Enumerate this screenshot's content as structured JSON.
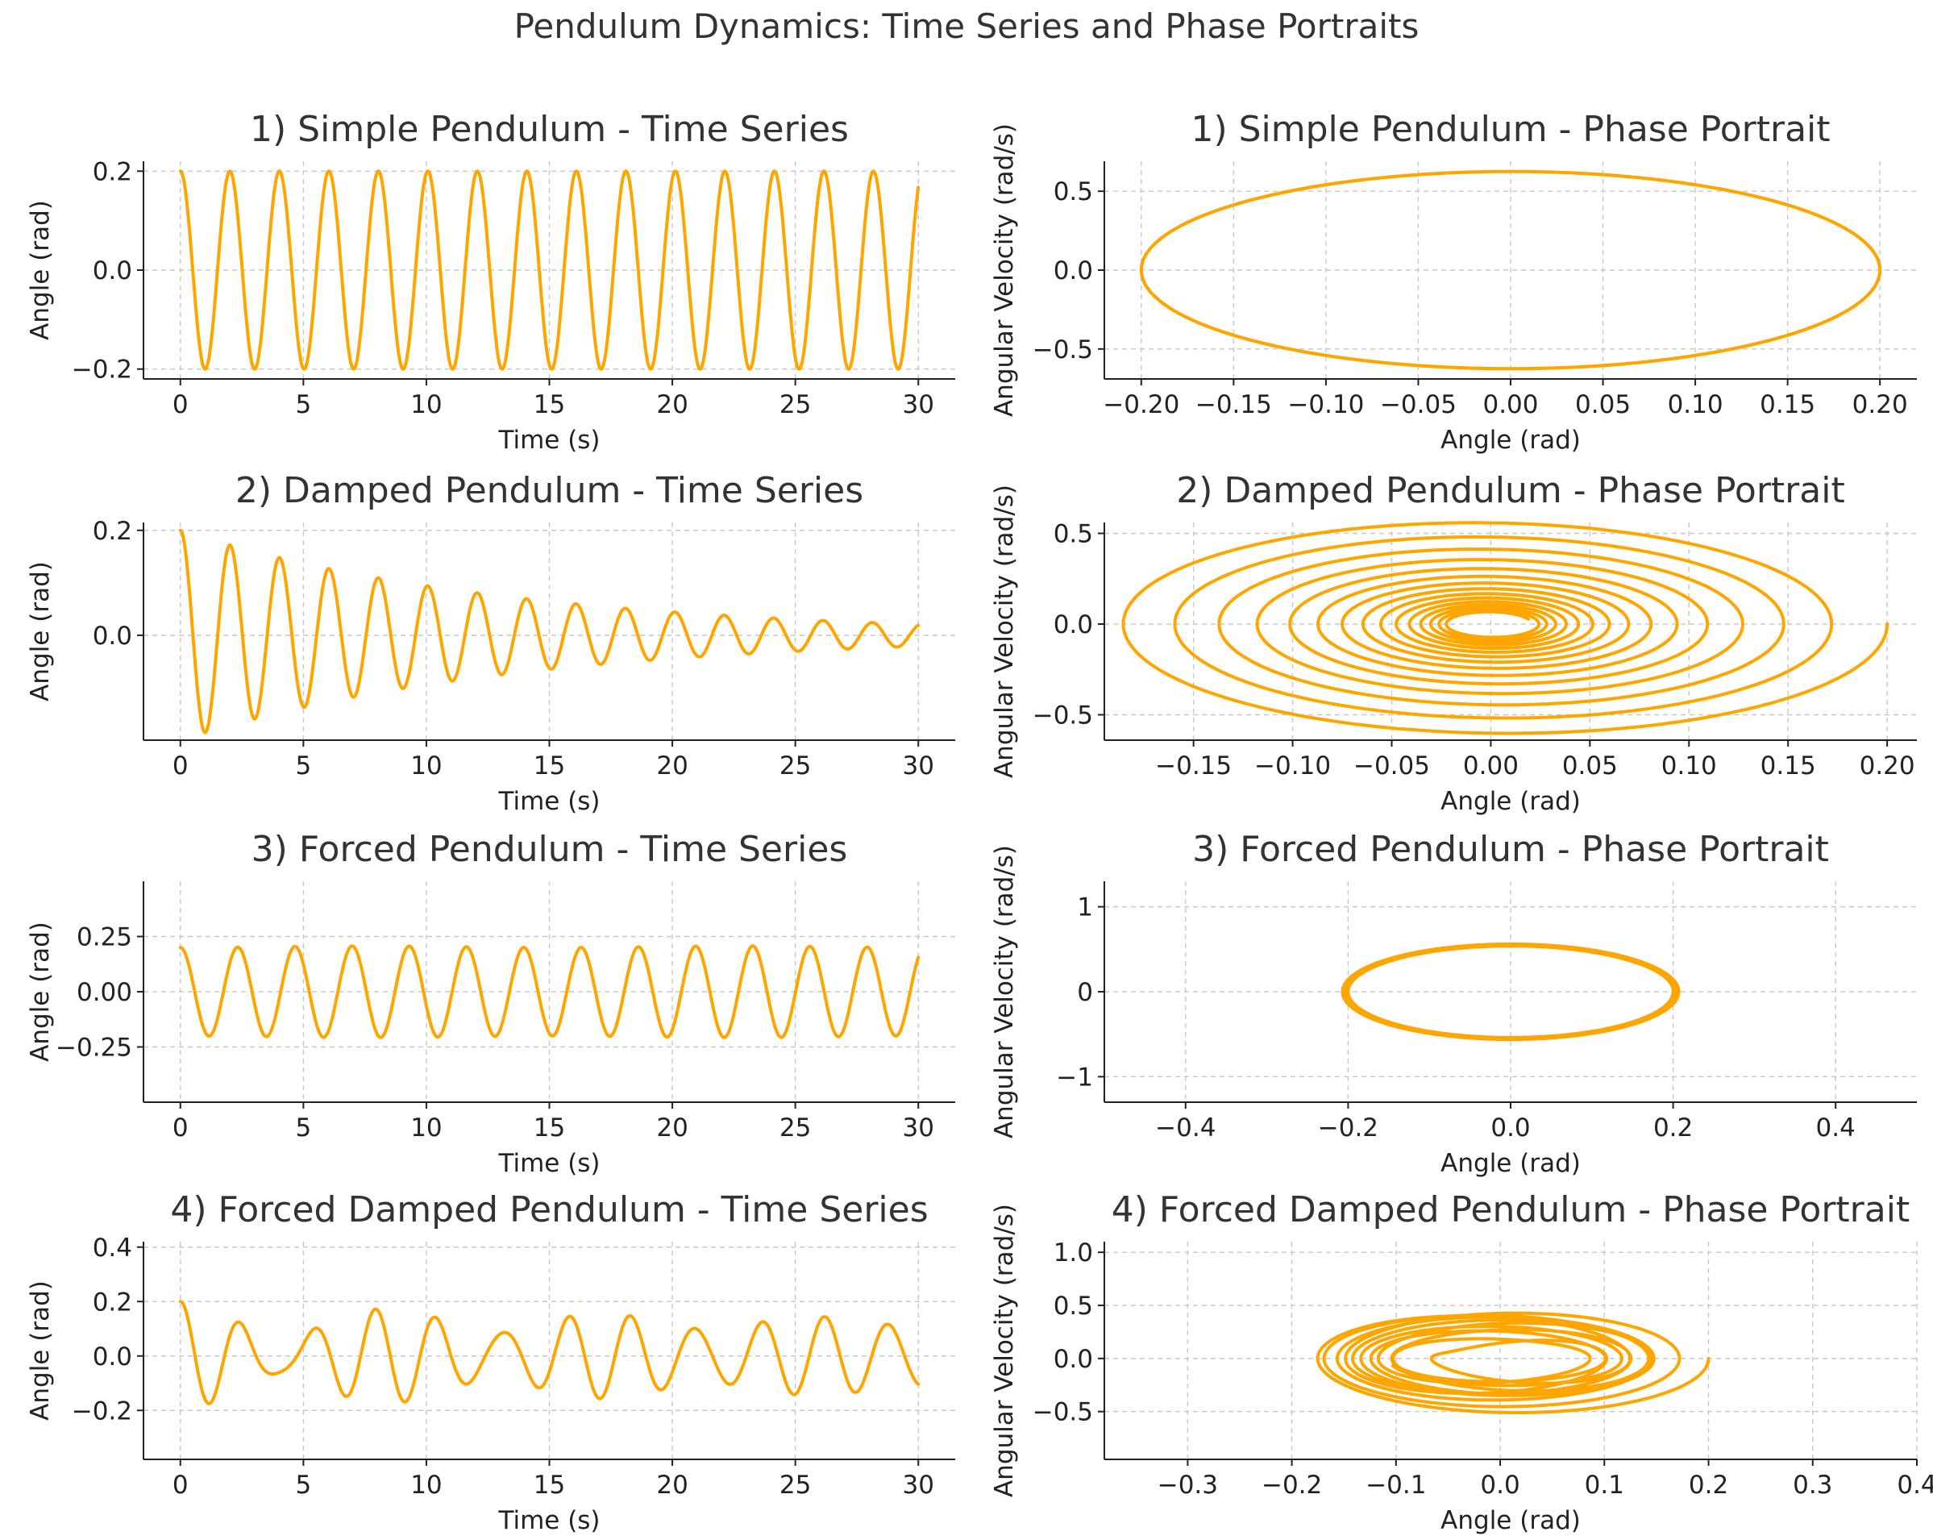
{
  "figure": {
    "suptitle": "Pendulum Dynamics: Time Series and Phase Portraits",
    "line_color": "#FFA500",
    "grid_color": "#c8c8c8"
  },
  "chart_data": [
    {
      "id": "simple-ts",
      "type": "line",
      "title": "1) Simple Pendulum - Time Series",
      "xlabel": "Time (s)",
      "ylabel": "Angle (rad)",
      "xlim": [
        -1.5,
        31.5
      ],
      "ylim": [
        -0.22,
        0.22
      ],
      "xticks": [
        0,
        5,
        10,
        15,
        20,
        25,
        30
      ],
      "xtick_labels": [
        "0",
        "5",
        "10",
        "15",
        "20",
        "25",
        "30"
      ],
      "yticks": [
        -0.2,
        0.0,
        0.2
      ],
      "ytick_labels": [
        "−0.2",
        "0.0",
        "0.2"
      ],
      "grid": true,
      "series": [
        {
          "model": {
            "kind": "time",
            "a0": 0.2,
            "omega": 3.13,
            "gamma": 0,
            "forcing": 0
          },
          "t_range": [
            0,
            30
          ]
        }
      ]
    },
    {
      "id": "simple-phase",
      "type": "line",
      "title": "1) Simple Pendulum - Phase Portrait",
      "xlabel": "Angle (rad)",
      "ylabel": "Angular Velocity (rad/s)",
      "xlim": [
        -0.22,
        0.22
      ],
      "ylim": [
        -0.69,
        0.69
      ],
      "xticks": [
        -0.2,
        -0.15,
        -0.1,
        -0.05,
        0.0,
        0.05,
        0.1,
        0.15,
        0.2
      ],
      "xtick_labels": [
        "−0.20",
        "−0.15",
        "−0.10",
        "−0.05",
        "0.00",
        "0.05",
        "0.10",
        "0.15",
        "0.20"
      ],
      "yticks": [
        -0.5,
        0.0,
        0.5
      ],
      "ytick_labels": [
        "−0.5",
        "0.0",
        "0.5"
      ],
      "grid": true,
      "series": [
        {
          "model": {
            "kind": "phase",
            "a0": 0.2,
            "omega": 3.13,
            "gamma": 0,
            "forcing": 0
          },
          "t_range": [
            0,
            30
          ]
        }
      ]
    },
    {
      "id": "damped-ts",
      "type": "line",
      "title": "2) Damped Pendulum - Time Series",
      "xlabel": "Time (s)",
      "ylabel": "Angle (rad)",
      "xlim": [
        -1.5,
        31.5
      ],
      "ylim": [
        -0.2,
        0.215
      ],
      "xticks": [
        0,
        5,
        10,
        15,
        20,
        25,
        30
      ],
      "xtick_labels": [
        "0",
        "5",
        "10",
        "15",
        "20",
        "25",
        "30"
      ],
      "yticks": [
        0.0,
        0.2
      ],
      "ytick_labels": [
        "0.0",
        "0.2"
      ],
      "grid": true,
      "series": [
        {
          "model": {
            "kind": "time",
            "a0": 0.2,
            "omega": 3.13,
            "gamma": 0.15,
            "forcing": 0
          },
          "t_range": [
            0,
            30
          ]
        }
      ]
    },
    {
      "id": "damped-phase",
      "type": "line",
      "title": "2) Damped Pendulum - Phase Portrait",
      "xlabel": "Angle (rad)",
      "ylabel": "Angular Velocity (rad/s)",
      "xlim": [
        -0.195,
        0.215
      ],
      "ylim": [
        -0.64,
        0.56
      ],
      "xticks": [
        -0.15,
        -0.1,
        -0.05,
        0.0,
        0.05,
        0.1,
        0.15,
        0.2
      ],
      "xtick_labels": [
        "−0.15",
        "−0.10",
        "−0.05",
        "0.00",
        "0.05",
        "0.10",
        "0.15",
        "0.20"
      ],
      "yticks": [
        -0.5,
        0.0,
        0.5
      ],
      "ytick_labels": [
        "−0.5",
        "0.0",
        "0.5"
      ],
      "grid": true,
      "series": [
        {
          "model": {
            "kind": "phase",
            "a0": 0.2,
            "omega": 3.13,
            "gamma": 0.15,
            "forcing": 0
          },
          "t_range": [
            0,
            30
          ]
        }
      ]
    },
    {
      "id": "forced-ts",
      "type": "line",
      "title": "3) Forced Pendulum - Time Series",
      "xlabel": "Time (s)",
      "ylabel": "Angle (rad)",
      "xlim": [
        -1.5,
        31.5
      ],
      "ylim": [
        -0.5,
        0.5
      ],
      "xticks": [
        0,
        5,
        10,
        15,
        20,
        25,
        30
      ],
      "xtick_labels": [
        "0",
        "5",
        "10",
        "15",
        "20",
        "25",
        "30"
      ],
      "yticks": [
        -0.25,
        0.0,
        0.25
      ],
      "ytick_labels": [
        "−0.25",
        "0.00",
        "0.25"
      ],
      "grid": true,
      "series": [
        {
          "model": {
            "kind": "time",
            "a0": 0.2,
            "omega": 3.13,
            "gamma": 0,
            "forcing": 1,
            "force_amp": 0.5,
            "force_omega": 2.7
          },
          "t_range": [
            0,
            30
          ]
        }
      ]
    },
    {
      "id": "forced-phase",
      "type": "line",
      "title": "3) Forced Pendulum - Phase Portrait",
      "xlabel": "Angle (rad)",
      "ylabel": "Angular Velocity (rad/s)",
      "xlim": [
        -0.5,
        0.5
      ],
      "ylim": [
        -1.3,
        1.3
      ],
      "xticks": [
        -0.4,
        -0.2,
        0.0,
        0.2,
        0.4
      ],
      "xtick_labels": [
        "−0.4",
        "−0.2",
        "0.0",
        "0.2",
        "0.4"
      ],
      "yticks": [
        -1,
        0,
        1
      ],
      "ytick_labels": [
        "−1",
        "0",
        "1"
      ],
      "grid": true,
      "series": [
        {
          "model": {
            "kind": "phase",
            "a0": 0.2,
            "omega": 3.13,
            "gamma": 0,
            "forcing": 1,
            "force_amp": 0.5,
            "force_omega": 2.7
          },
          "t_range": [
            0,
            30
          ]
        }
      ]
    },
    {
      "id": "forced-damped-ts",
      "type": "line",
      "title": "4) Forced Damped Pendulum - Time Series",
      "xlabel": "Time (s)",
      "ylabel": "Angle (rad)",
      "xlim": [
        -1.5,
        31.5
      ],
      "ylim": [
        -0.38,
        0.42
      ],
      "xticks": [
        0,
        5,
        10,
        15,
        20,
        25,
        30
      ],
      "xtick_labels": [
        "0",
        "5",
        "10",
        "15",
        "20",
        "25",
        "30"
      ],
      "yticks": [
        -0.2,
        0.0,
        0.2,
        0.4
      ],
      "ytick_labels": [
        "−0.2",
        "0.0",
        "0.2",
        "0.4"
      ],
      "grid": true,
      "series": [
        {
          "model": {
            "kind": "time",
            "a0": 0.2,
            "omega": 3.13,
            "gamma": 0.1,
            "forcing": 1,
            "force_amp": 0.5,
            "force_omega": 2.4
          },
          "t_range": [
            0,
            30
          ]
        }
      ]
    },
    {
      "id": "forced-damped-phase",
      "type": "line",
      "title": "4) Forced Damped Pendulum - Phase Portrait",
      "xlabel": "Angle (rad)",
      "ylabel": "Angular Velocity (rad/s)",
      "xlim": [
        -0.38,
        0.4
      ],
      "ylim": [
        -0.95,
        1.1
      ],
      "xticks": [
        -0.3,
        -0.2,
        -0.1,
        0.0,
        0.1,
        0.2,
        0.3,
        0.4
      ],
      "xtick_labels": [
        "−0.3",
        "−0.2",
        "−0.1",
        "0.0",
        "0.1",
        "0.2",
        "0.3",
        "0.4"
      ],
      "yticks": [
        -0.5,
        0.0,
        0.5,
        1.0
      ],
      "ytick_labels": [
        "−0.5",
        "0.0",
        "0.5",
        "1.0"
      ],
      "grid": true,
      "series": [
        {
          "model": {
            "kind": "phase",
            "a0": 0.2,
            "omega": 3.13,
            "gamma": 0.1,
            "forcing": 1,
            "force_amp": 0.5,
            "force_omega": 2.4
          },
          "t_range": [
            0,
            30
          ]
        }
      ]
    }
  ]
}
